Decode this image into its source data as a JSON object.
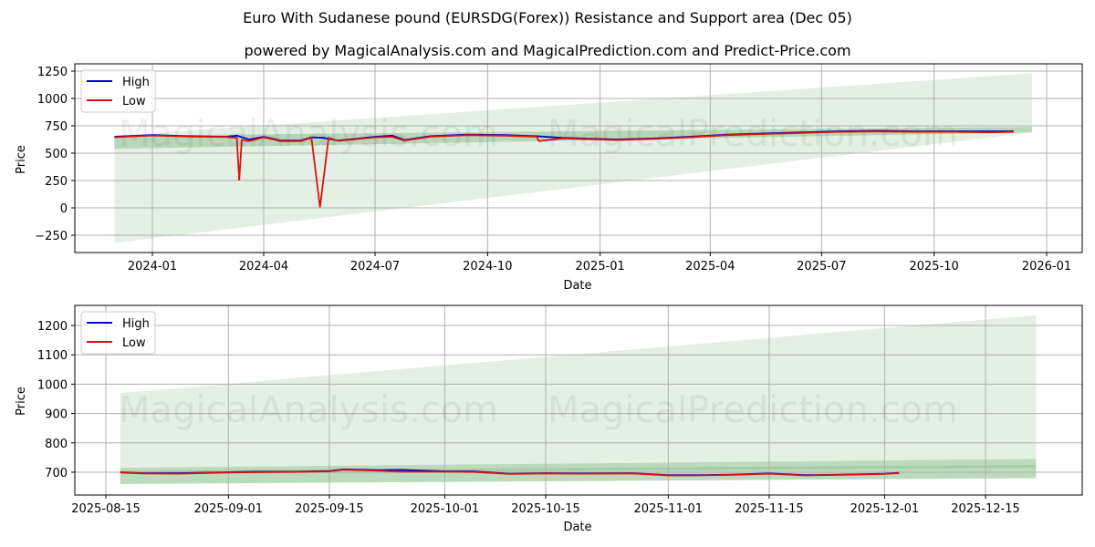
{
  "header": {
    "title": "Euro With Sudanese pound (EURSDG(Forex)) Resistance and Support area (Dec 05)",
    "subtitle": "powered by MagicalAnalysis.com and MagicalPrediction.com and Predict-Price.com"
  },
  "watermarks": [
    "MagicalAnalysis.com",
    "MagicalPrediction.com"
  ],
  "colors": {
    "high": "#0000cc",
    "low": "#dd1111",
    "band_light": "#cfe8cf",
    "band_dark": "#8fc98f",
    "grid": "#b0b0b0"
  },
  "chart_data": [
    {
      "type": "line",
      "title": "Long-term (full history)",
      "xlabel": "Date",
      "ylabel": "Price",
      "ylim": [
        -400,
        1320
      ],
      "yticks": [
        "1250",
        "1000",
        "750",
        "500",
        "250",
        "0",
        "−250"
      ],
      "xticks": [
        "2024-01",
        "2024-04",
        "2024-07",
        "2024-10",
        "2025-01",
        "2025-04",
        "2025-07",
        "2025-10",
        "2026-01"
      ],
      "grid": true,
      "legend": {
        "position": "upper left",
        "entries": [
          "High",
          "Low"
        ]
      },
      "series": [
        {
          "name": "High",
          "x": [
            "2023-12-01",
            "2024-01-01",
            "2024-02-01",
            "2024-03-01",
            "2024-03-10",
            "2024-03-20",
            "2024-04-01",
            "2024-04-15",
            "2024-05-01",
            "2024-05-10",
            "2024-05-20",
            "2024-06-01",
            "2024-07-01",
            "2024-07-15",
            "2024-07-25",
            "2024-08-15",
            "2024-09-15",
            "2024-10-15",
            "2024-11-10",
            "2024-12-01",
            "2025-01-15",
            "2025-02-15",
            "2025-03-15",
            "2025-04-15",
            "2025-05-15",
            "2025-06-15",
            "2025-07-15",
            "2025-08-15",
            "2025-09-15",
            "2025-10-15",
            "2025-11-15",
            "2025-12-05"
          ],
          "values": [
            650,
            665,
            655,
            650,
            660,
            625,
            650,
            615,
            615,
            645,
            640,
            615,
            650,
            660,
            620,
            655,
            670,
            665,
            655,
            640,
            625,
            635,
            650,
            670,
            680,
            690,
            700,
            705,
            700,
            700,
            700,
            700
          ]
        },
        {
          "name": "Low",
          "x": [
            "2023-12-01",
            "2024-01-01",
            "2024-02-01",
            "2024-03-01",
            "2024-03-10",
            "2024-03-12",
            "2024-03-14",
            "2024-03-20",
            "2024-04-01",
            "2024-04-15",
            "2024-05-01",
            "2024-05-10",
            "2024-05-17",
            "2024-05-24",
            "2024-06-01",
            "2024-07-01",
            "2024-07-15",
            "2024-07-25",
            "2024-08-15",
            "2024-09-15",
            "2024-10-15",
            "2024-11-10",
            "2024-11-12",
            "2024-12-01",
            "2025-01-15",
            "2025-02-15",
            "2025-03-15",
            "2025-04-15",
            "2025-05-15",
            "2025-06-15",
            "2025-07-15",
            "2025-08-15",
            "2025-09-15",
            "2025-10-15",
            "2025-11-15",
            "2025-12-05"
          ],
          "values": [
            645,
            662,
            652,
            648,
            640,
            250,
            620,
            610,
            645,
            610,
            610,
            640,
            5,
            640,
            612,
            645,
            650,
            615,
            650,
            665,
            660,
            650,
            610,
            635,
            620,
            630,
            645,
            665,
            675,
            685,
            695,
            698,
            695,
            695,
            690,
            695
          ]
        }
      ],
      "bands": [
        {
          "name": "support-resistance-core",
          "start": "2023-12-01",
          "end": "2025-12-20",
          "y0_start": 540,
          "y1_start": 660,
          "y0_end": 690,
          "y1_end": 740
        },
        {
          "name": "forecast-cone",
          "start": "2023-12-01",
          "end": "2025-12-20",
          "y0_start": -320,
          "y1_start": 660,
          "y0_end": 690,
          "y1_end": 1230
        }
      ]
    },
    {
      "type": "line",
      "title": "Recent (last ~4 months)",
      "xlabel": "Date",
      "ylabel": "Price",
      "ylim": [
        625,
        1265
      ],
      "yticks": [
        "1200",
        "1100",
        "1000",
        "900",
        "800",
        "700"
      ],
      "xticks": [
        "2025-08-15",
        "2025-09-01",
        "2025-09-15",
        "2025-10-01",
        "2025-10-15",
        "2025-11-01",
        "2025-11-15",
        "2025-12-01",
        "2025-12-15"
      ],
      "grid": true,
      "legend": {
        "position": "upper left",
        "entries": [
          "High",
          "Low"
        ]
      },
      "series": [
        {
          "name": "High",
          "x": [
            "2025-08-17",
            "2025-08-20",
            "2025-08-25",
            "2025-09-01",
            "2025-09-05",
            "2025-09-10",
            "2025-09-15",
            "2025-09-17",
            "2025-09-22",
            "2025-09-25",
            "2025-10-01",
            "2025-10-05",
            "2025-10-10",
            "2025-10-15",
            "2025-10-20",
            "2025-10-27",
            "2025-11-01",
            "2025-11-05",
            "2025-11-10",
            "2025-11-15",
            "2025-11-20",
            "2025-11-25",
            "2025-12-01",
            "2025-12-03"
          ],
          "values": [
            700,
            697,
            697,
            700,
            702,
            702,
            704,
            710,
            707,
            708,
            703,
            703,
            695,
            697,
            696,
            697,
            690,
            690,
            692,
            696,
            690,
            692,
            695,
            698
          ]
        },
        {
          "name": "Low",
          "x": [
            "2025-08-17",
            "2025-08-20",
            "2025-08-25",
            "2025-09-01",
            "2025-09-05",
            "2025-09-10",
            "2025-09-15",
            "2025-09-17",
            "2025-09-22",
            "2025-09-25",
            "2025-10-01",
            "2025-10-05",
            "2025-10-10",
            "2025-10-15",
            "2025-10-20",
            "2025-10-27",
            "2025-11-01",
            "2025-11-05",
            "2025-11-10",
            "2025-11-15",
            "2025-11-20",
            "2025-11-25",
            "2025-12-01",
            "2025-12-03"
          ],
          "values": [
            699,
            696,
            695,
            699,
            700,
            701,
            703,
            709,
            705,
            702,
            702,
            701,
            694,
            696,
            695,
            696,
            689,
            689,
            691,
            695,
            689,
            691,
            694,
            697
          ]
        }
      ],
      "bands": [
        {
          "name": "support-resistance-core",
          "start": "2025-08-17",
          "end": "2025-12-22",
          "y0_start": 660,
          "y1_start": 715,
          "y0_end": 680,
          "y1_end": 745
        },
        {
          "name": "inner-band",
          "start": "2025-08-17",
          "end": "2025-12-22",
          "y0_start": 695,
          "y1_start": 705,
          "y0_end": 715,
          "y1_end": 725
        },
        {
          "name": "forecast-cone",
          "start": "2025-08-17",
          "end": "2025-12-22",
          "y0_start": 660,
          "y1_start": 970,
          "y0_end": 680,
          "y1_end": 1235
        }
      ]
    }
  ]
}
